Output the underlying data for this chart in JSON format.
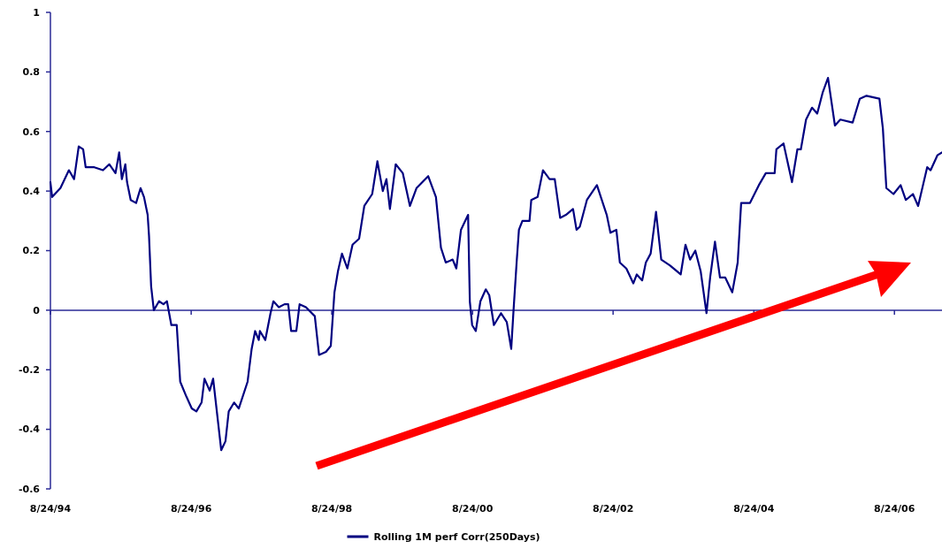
{
  "chart_data": {
    "type": "line",
    "legend": "bottom",
    "marker": "none",
    "line_style": "solid",
    "grid": false,
    "xlim": [
      "1994-08-24",
      "2007-04-28"
    ],
    "xticks": [
      {
        "value": "1994-08-24",
        "label": "8/24/94"
      },
      {
        "value": "1996-08-24",
        "label": "8/24/96"
      },
      {
        "value": "1998-08-24",
        "label": "8/24/98"
      },
      {
        "value": "2000-08-24",
        "label": "8/24/00"
      },
      {
        "value": "2002-08-24",
        "label": "8/24/02"
      },
      {
        "value": "2004-08-24",
        "label": "8/24/04"
      },
      {
        "value": "2006-08-24",
        "label": "8/24/06"
      }
    ],
    "ref_lines": [
      {
        "axis": "y",
        "value": 0,
        "color": "#2a2a96"
      }
    ],
    "ylim": [
      -0.6,
      1
    ],
    "yticks": [
      -0.6,
      -0.4,
      -0.2,
      0,
      0.2,
      0.4,
      0.6,
      0.8,
      1
    ],
    "x": [
      "1994-08-24",
      "1994-09-02",
      "1994-10-15",
      "1994-11-28",
      "1994-12-25",
      "1995-01-18",
      "1995-02-10",
      "1995-02-23",
      "1995-04-09",
      "1995-05-24",
      "1995-06-26",
      "1995-07-28",
      "1995-08-16",
      "1995-08-30",
      "1995-09-17",
      "1995-09-26",
      "1995-10-15",
      "1995-11-12",
      "1995-12-05",
      "1995-12-23",
      "1996-01-11",
      "1996-01-18",
      "1996-01-29",
      "1996-02-12",
      "1996-03-10",
      "1996-04-02",
      "1996-04-20",
      "1996-05-13",
      "1996-06-10",
      "1996-06-28",
      "1996-07-30",
      "1996-08-27",
      "1996-09-20",
      "1996-10-17",
      "1996-11-01",
      "1996-11-28",
      "1996-12-16",
      "1996-12-30",
      "1997-01-27",
      "1997-02-18",
      "1997-03-07",
      "1997-04-04",
      "1997-04-28",
      "1997-06-13",
      "1997-07-04",
      "1997-07-22",
      "1997-08-10",
      "1997-08-16",
      "1997-09-13",
      "1997-10-10",
      "1997-10-25",
      "1997-11-22",
      "1997-12-22",
      "1998-01-10",
      "1998-01-25",
      "1998-02-21",
      "1998-03-10",
      "1998-04-12",
      "1998-05-28",
      "1998-06-19",
      "1998-07-25",
      "1998-08-19",
      "1998-09-07",
      "1998-09-25",
      "1998-10-16",
      "1998-11-13",
      "1998-12-10",
      "1999-01-13",
      "1999-02-09",
      "1999-03-22",
      "1999-04-18",
      "1999-05-16",
      "1999-06-04",
      "1999-06-22",
      "1999-07-22",
      "1999-08-28",
      "1999-10-04",
      "1999-11-07",
      "2000-01-07",
      "2000-02-16",
      "2000-03-13",
      "2000-04-07",
      "2000-05-13",
      "2000-06-01",
      "2000-06-25",
      "2000-08-01",
      "2000-08-10",
      "2000-08-22",
      "2000-09-10",
      "2000-10-04",
      "2000-11-01",
      "2000-11-19",
      "2000-12-13",
      "2001-01-19",
      "2001-02-18",
      "2001-03-13",
      "2001-03-25",
      "2001-04-10",
      "2001-04-22",
      "2001-05-10",
      "2001-06-16",
      "2001-06-25",
      "2001-07-28",
      "2001-08-25",
      "2001-09-28",
      "2001-10-25",
      "2001-11-22",
      "2001-12-22",
      "2002-01-28",
      "2002-02-15",
      "2002-03-04",
      "2002-04-10",
      "2002-06-01",
      "2002-07-22",
      "2002-08-10",
      "2002-09-10",
      "2002-09-28",
      "2002-11-01",
      "2002-12-07",
      "2002-12-25",
      "2003-01-22",
      "2003-02-10",
      "2003-03-07",
      "2003-04-04",
      "2003-05-01",
      "2003-06-16",
      "2003-08-10",
      "2003-09-04",
      "2003-09-28",
      "2003-10-25",
      "2003-11-22",
      "2003-12-22",
      "2004-01-10",
      "2004-02-04",
      "2004-03-01",
      "2004-03-28",
      "2004-05-04",
      "2004-06-01",
      "2004-06-19",
      "2004-08-04",
      "2004-09-19",
      "2004-10-25",
      "2004-12-10",
      "2004-12-19",
      "2005-01-25",
      "2005-03-10",
      "2005-04-07",
      "2005-04-25",
      "2005-05-22",
      "2005-06-22",
      "2005-07-19",
      "2005-08-16",
      "2005-09-13",
      "2005-10-19",
      "2005-11-16",
      "2006-01-19",
      "2006-02-25",
      "2006-04-01",
      "2006-06-07",
      "2006-06-25",
      "2006-07-13",
      "2006-08-19",
      "2006-09-25",
      "2006-10-22",
      "2006-11-28",
      "2006-12-25",
      "2007-02-10",
      "2007-02-28",
      "2007-04-04",
      "2007-04-28"
    ],
    "series": [
      {
        "name": "Rolling 1M perf Corr(250Days)",
        "color": "#000080",
        "values": [
          0.43,
          0.38,
          0.41,
          0.47,
          0.44,
          0.55,
          0.54,
          0.48,
          0.48,
          0.47,
          0.49,
          0.46,
          0.53,
          0.44,
          0.49,
          0.43,
          0.37,
          0.36,
          0.41,
          0.38,
          0.32,
          0.25,
          0.08,
          0.0,
          0.03,
          0.02,
          0.03,
          -0.05,
          -0.05,
          -0.24,
          -0.29,
          -0.33,
          -0.34,
          -0.31,
          -0.23,
          -0.27,
          -0.23,
          -0.31,
          -0.47,
          -0.44,
          -0.34,
          -0.31,
          -0.33,
          -0.24,
          -0.13,
          -0.07,
          -0.1,
          -0.07,
          -0.1,
          -0.01,
          0.03,
          0.01,
          0.02,
          0.02,
          -0.07,
          -0.07,
          0.02,
          0.01,
          -0.02,
          -0.15,
          -0.14,
          -0.12,
          0.06,
          0.13,
          0.19,
          0.14,
          0.22,
          0.24,
          0.35,
          0.39,
          0.5,
          0.4,
          0.44,
          0.34,
          0.49,
          0.46,
          0.35,
          0.41,
          0.45,
          0.38,
          0.21,
          0.16,
          0.17,
          0.14,
          0.27,
          0.32,
          0.03,
          -0.05,
          -0.07,
          0.03,
          0.07,
          0.05,
          -0.05,
          -0.01,
          -0.04,
          -0.13,
          0.0,
          0.16,
          0.27,
          0.3,
          0.3,
          0.37,
          0.38,
          0.47,
          0.44,
          0.44,
          0.31,
          0.32,
          0.34,
          0.27,
          0.28,
          0.37,
          0.42,
          0.32,
          0.26,
          0.27,
          0.16,
          0.14,
          0.09,
          0.12,
          0.1,
          0.16,
          0.19,
          0.33,
          0.17,
          0.15,
          0.12,
          0.22,
          0.17,
          0.2,
          0.13,
          -0.01,
          0.11,
          0.23,
          0.11,
          0.11,
          0.06,
          0.16,
          0.36,
          0.36,
          0.42,
          0.46,
          0.46,
          0.54,
          0.56,
          0.43,
          0.54,
          0.54,
          0.64,
          0.68,
          0.66,
          0.73,
          0.78,
          0.62,
          0.64,
          0.63,
          0.71,
          0.72,
          0.71,
          0.61,
          0.41,
          0.39,
          0.42,
          0.37,
          0.39,
          0.35,
          0.48,
          0.47,
          0.52,
          0.53
        ]
      }
    ]
  }
}
